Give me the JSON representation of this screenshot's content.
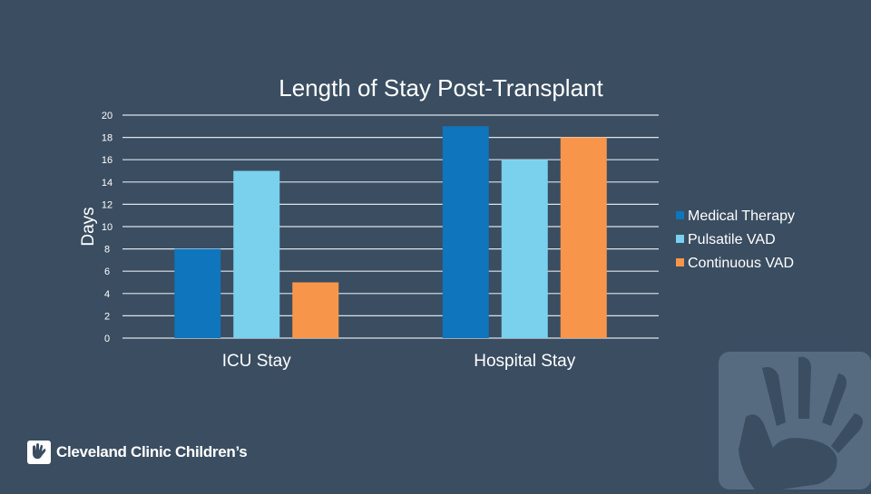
{
  "chart_data": {
    "type": "bar",
    "title": "Length of Stay Post-Transplant",
    "ylabel": "Days",
    "xlabel": "",
    "categories": [
      "ICU Stay",
      "Hospital Stay"
    ],
    "series": [
      {
        "name": "Medical Therapy",
        "color": "#0f75bc",
        "values": [
          8,
          19
        ]
      },
      {
        "name": "Pulsatile VAD",
        "color": "#79d1ee",
        "values": [
          15,
          16
        ]
      },
      {
        "name": "Continuous VAD",
        "color": "#f7964a",
        "values": [
          5,
          18
        ]
      }
    ],
    "ylim": [
      0,
      20
    ],
    "yticks": [
      "0",
      "2",
      "4",
      "6",
      "8",
      "10",
      "12",
      "14",
      "16",
      "18",
      "20"
    ],
    "grid": true,
    "legend_position": "right"
  },
  "brand": {
    "logo_text": "Cleveland Clinic Children’s",
    "background_color": "#3a4d61"
  }
}
